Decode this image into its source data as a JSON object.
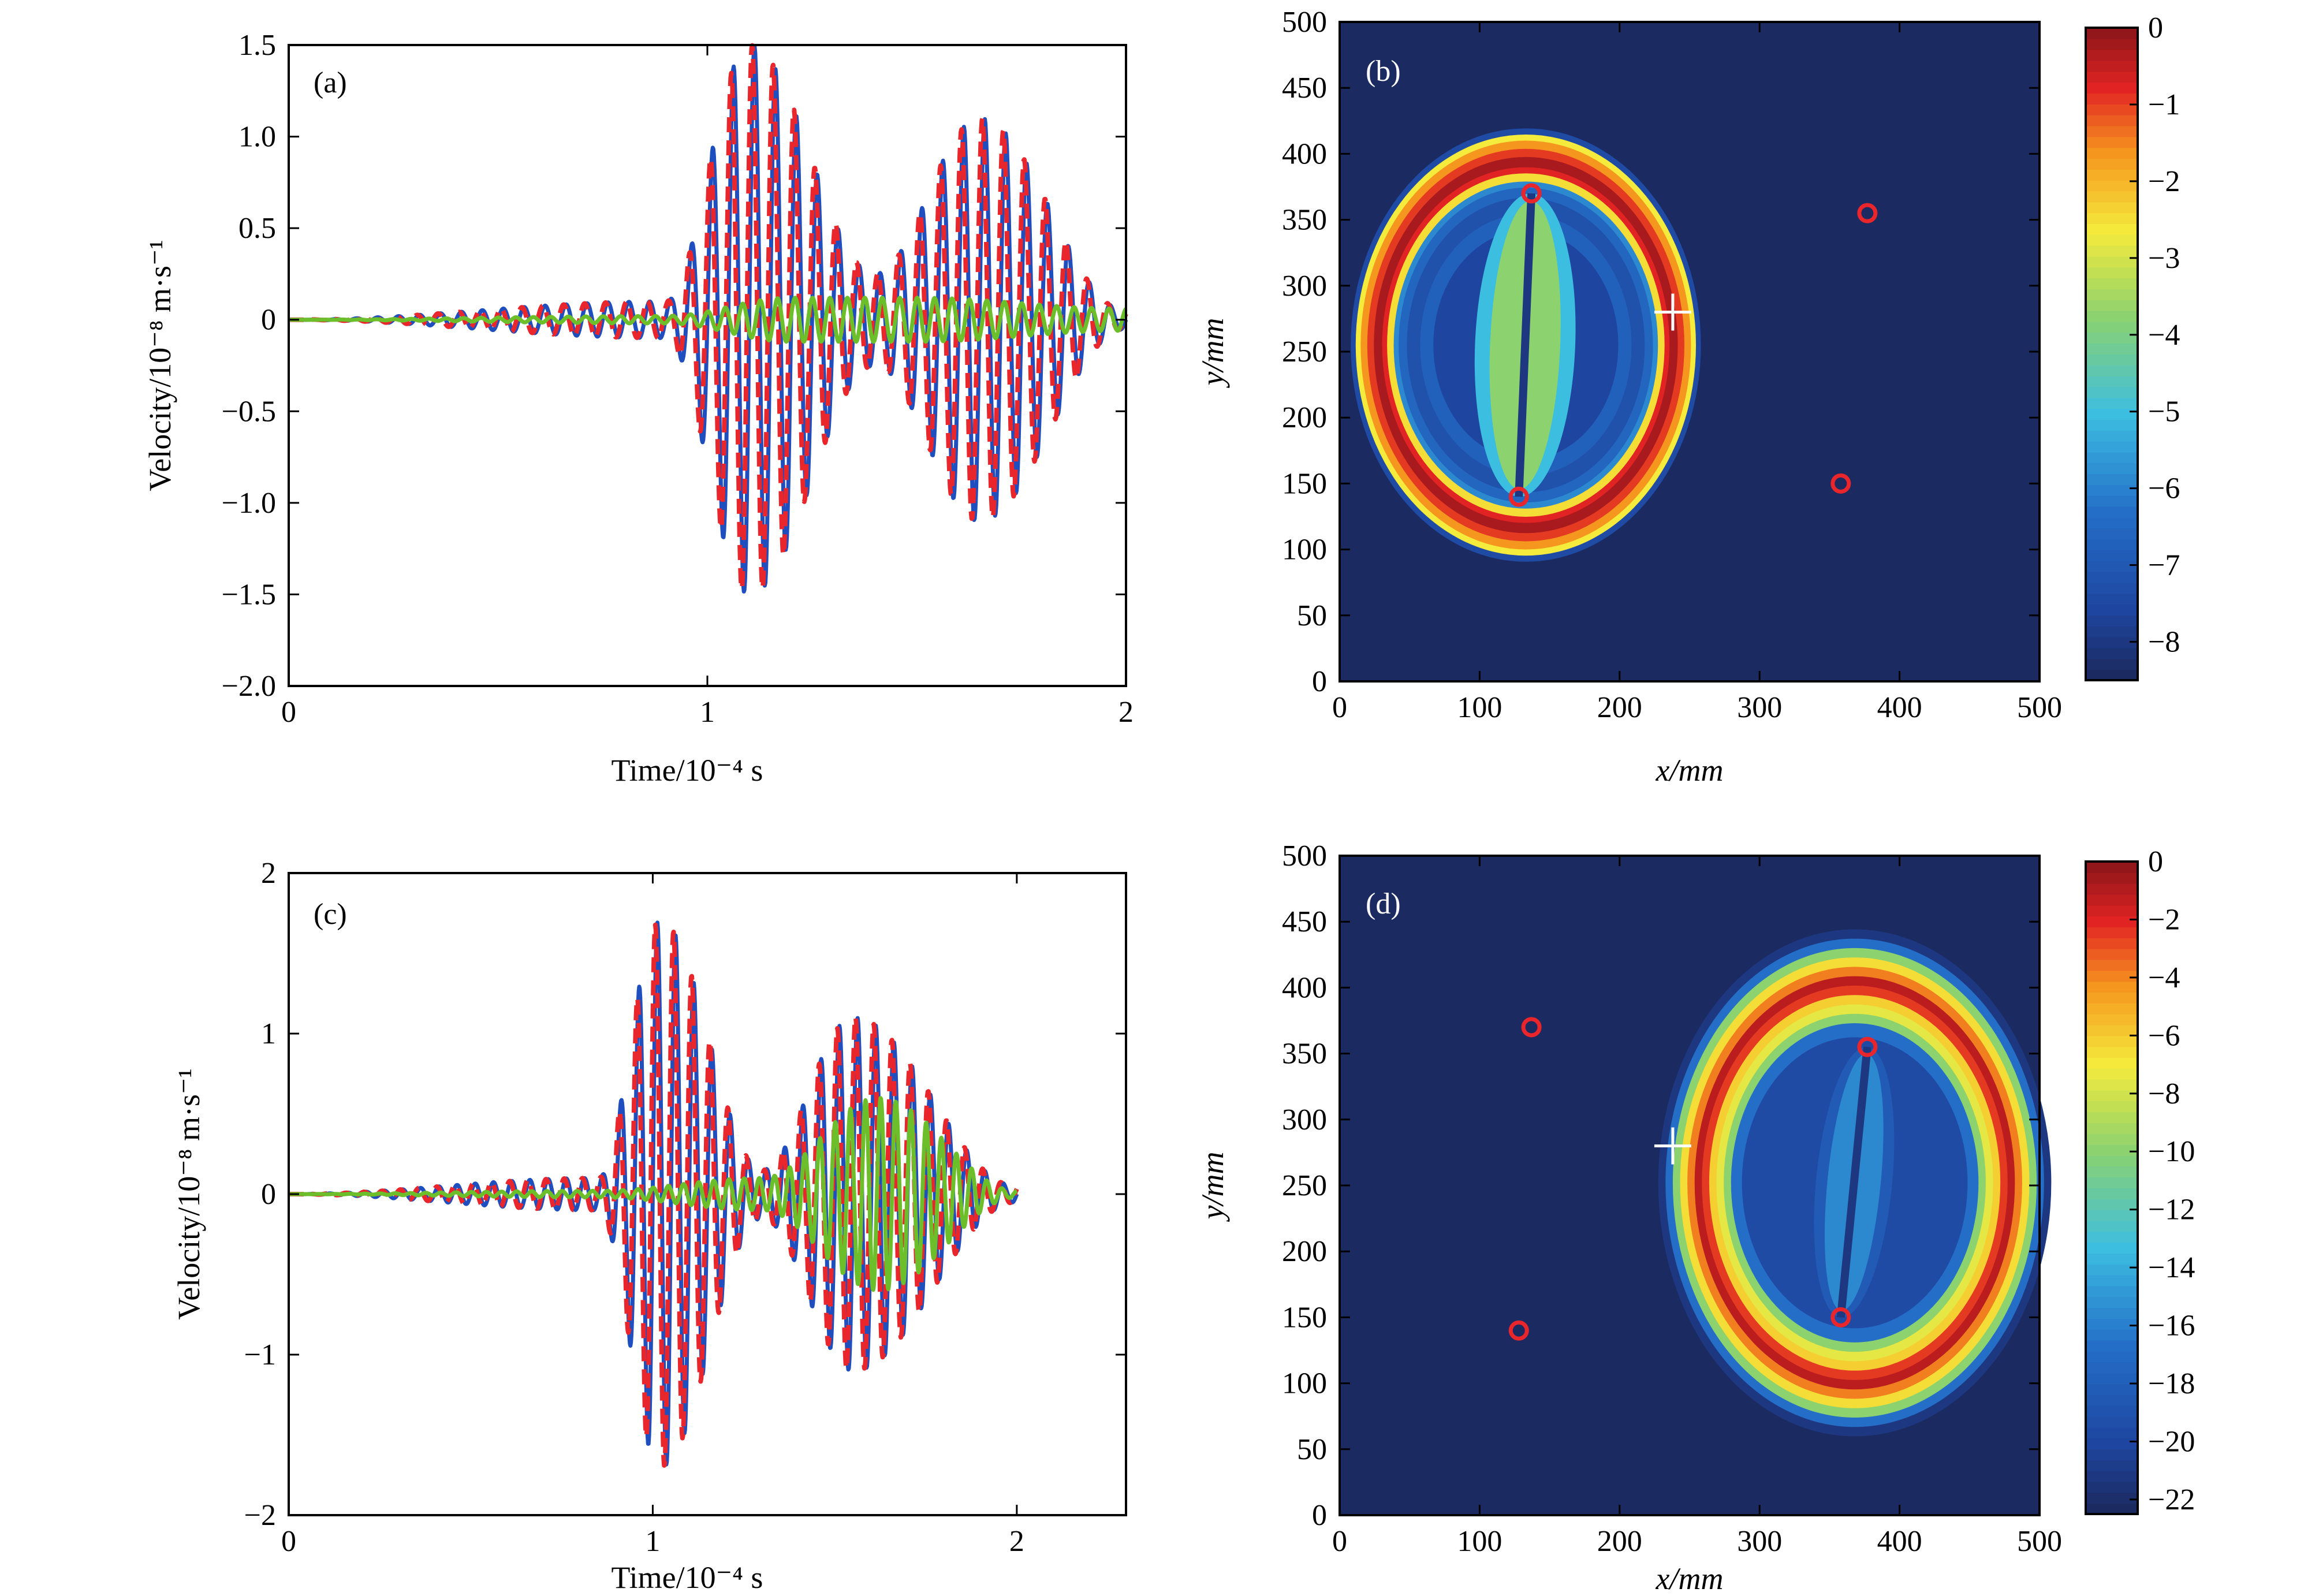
{
  "chart_data": [
    {
      "panel": "(a)",
      "type": "line",
      "xlabel": "Time/10⁻⁴ s",
      "ylabel": "Velocity/10⁻⁸ m·s⁻¹",
      "xlim": [
        0,
        2
      ],
      "ylim": [
        -2.0,
        1.5
      ],
      "xticks": [
        "0",
        "1",
        "2"
      ],
      "yticks": [
        "−2.0",
        "−1.5",
        "−1.0",
        "−0.5",
        "0",
        "0.5",
        "1.0",
        "1.5"
      ],
      "series": [
        {
          "style": "solid",
          "color": "#1f4fbf",
          "x": [
            0,
            0.9,
            1.1,
            1.4,
            1.65,
            2.0
          ],
          "amplitude": [
            0,
            0.1,
            1.5,
            0.25,
            1.1,
            0.05
          ]
        },
        {
          "style": "dashed",
          "color": "#e8262b",
          "x": [
            0,
            0.9,
            1.1,
            1.4,
            1.65,
            2.0
          ],
          "amplitude": [
            0,
            0.1,
            1.5,
            0.25,
            1.1,
            0.05
          ]
        },
        {
          "style": "solid",
          "color": "#6cbf2a",
          "x": [
            0,
            0.9,
            1.2,
            1.5,
            2.0
          ],
          "amplitude": [
            0,
            0.02,
            0.12,
            0.12,
            0.06
          ]
        }
      ]
    },
    {
      "panel": "(b)",
      "type": "heatmap",
      "xlabel": "x/mm",
      "ylabel": "y/mm",
      "xlim": [
        0,
        500
      ],
      "ylim": [
        0,
        500
      ],
      "xticks": [
        "0",
        "100",
        "200",
        "300",
        "400",
        "500"
      ],
      "yticks": [
        "0",
        "50",
        "100",
        "150",
        "200",
        "250",
        "300",
        "350",
        "400",
        "450",
        "500"
      ],
      "colorbar_ticks": [
        "0",
        "−1",
        "−2",
        "−3",
        "−4",
        "−5",
        "−6",
        "−7",
        "−8"
      ],
      "colorbar_range": [
        -8.5,
        0
      ],
      "markers": [
        {
          "x": 137,
          "y": 370
        },
        {
          "x": 128,
          "y": 140
        },
        {
          "x": 377,
          "y": 355
        },
        {
          "x": 358,
          "y": 150
        }
      ],
      "cross": {
        "x": 238,
        "y": 280
      },
      "ellipse": {
        "cx": 133,
        "cy": 255,
        "rx": 118,
        "ry": 155
      }
    },
    {
      "panel": "(c)",
      "type": "line",
      "xlabel": "Time/10⁻⁴ s",
      "ylabel": "Velocity/10⁻⁸ m·s⁻¹",
      "xlim": [
        0,
        2.3
      ],
      "ylim": [
        -2,
        2
      ],
      "xticks": [
        "0",
        "1",
        "2"
      ],
      "yticks": [
        "−2",
        "−1",
        "0",
        "1",
        "2"
      ],
      "series": [
        {
          "style": "solid",
          "color": "#1f4fbf",
          "x": [
            0,
            0.85,
            1.02,
            1.3,
            1.55,
            2.0
          ],
          "amplitude": [
            0,
            0.1,
            1.7,
            0.15,
            1.1,
            0.05
          ]
        },
        {
          "style": "dashed",
          "color": "#e8262b",
          "x": [
            0,
            0.85,
            1.02,
            1.3,
            1.55,
            2.0
          ],
          "amplitude": [
            0,
            0.1,
            1.7,
            0.15,
            1.1,
            0.05
          ]
        },
        {
          "style": "solid",
          "color": "#6cbf2a",
          "x": [
            0,
            0.85,
            1.3,
            1.62,
            2.0
          ],
          "amplitude": [
            0,
            0.02,
            0.1,
            0.6,
            0.02
          ]
        }
      ]
    },
    {
      "panel": "(d)",
      "type": "heatmap",
      "xlabel": "x/mm",
      "ylabel": "y/mm",
      "xlim": [
        0,
        500
      ],
      "ylim": [
        0,
        500
      ],
      "xticks": [
        "0",
        "100",
        "200",
        "300",
        "400",
        "500"
      ],
      "yticks": [
        "0",
        "50",
        "100",
        "150",
        "200",
        "250",
        "300",
        "350",
        "400",
        "450",
        "500"
      ],
      "colorbar_ticks": [
        "0",
        "−2",
        "−4",
        "−6",
        "−8",
        "−10",
        "−12",
        "−14",
        "−16",
        "−18",
        "−20",
        "−22"
      ],
      "colorbar_range": [
        -22.5,
        0
      ],
      "markers": [
        {
          "x": 137,
          "y": 370
        },
        {
          "x": 128,
          "y": 140
        },
        {
          "x": 377,
          "y": 355
        },
        {
          "x": 358,
          "y": 150
        }
      ],
      "cross": {
        "x": 238,
        "y": 280
      },
      "ellipse": {
        "cx": 368,
        "cy": 252,
        "rx": 130,
        "ry": 178
      }
    }
  ]
}
